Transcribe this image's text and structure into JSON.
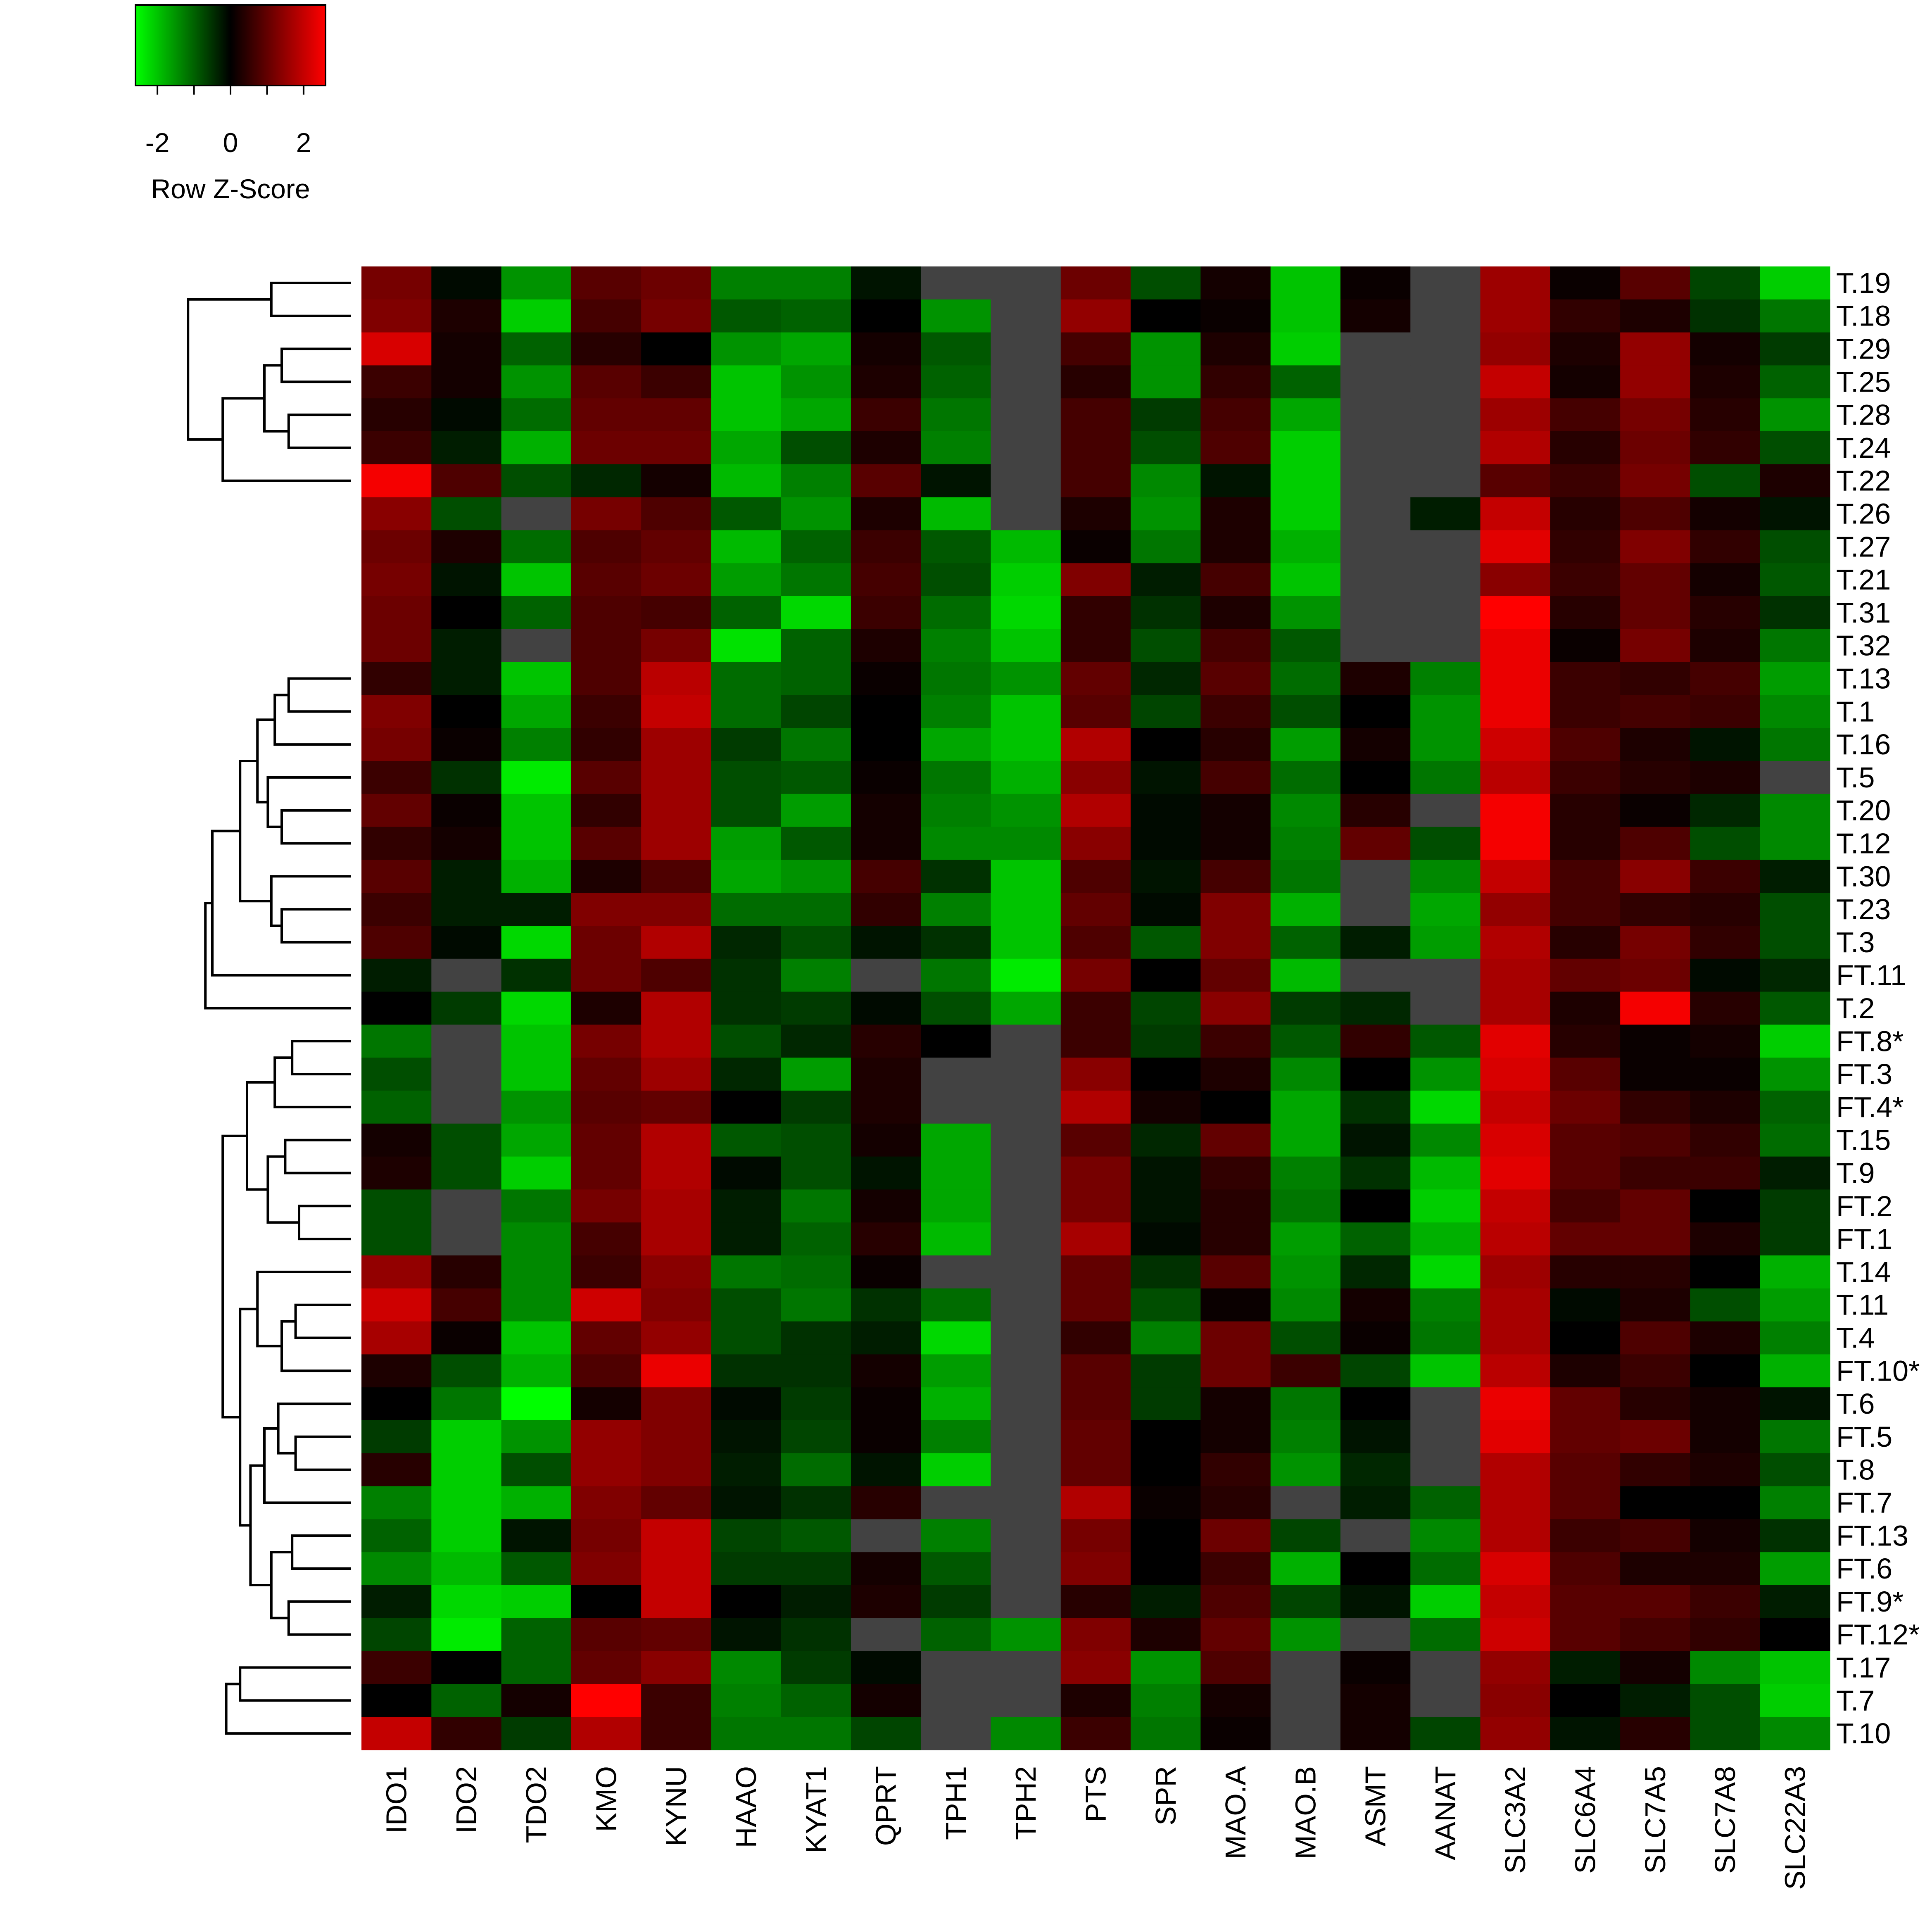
{
  "colors": {
    "low": "#00ff00",
    "mid": "#000000",
    "high": "#ff0000",
    "na": "#424242"
  },
  "legend": {
    "title": "Row Z-Score",
    "ticks": [
      "-2",
      "0",
      "2"
    ],
    "tick_values": [
      -2,
      0,
      2
    ],
    "range": [
      -2.6,
      2.6
    ]
  },
  "chart_data": {
    "type": "heatmap",
    "title": "",
    "xlabel": "",
    "ylabel": "",
    "value_range": [
      -2.6,
      2.6
    ],
    "dendrogram": "rows",
    "columns": [
      "IDO1",
      "IDO2",
      "TDO2",
      "KMO",
      "KYNU",
      "HAAO",
      "KYAT1",
      "QPRT",
      "TPH1",
      "TPH2",
      "PTS",
      "SPR",
      "MAO.A",
      "MAO.B",
      "ASMT",
      "AANAT",
      "SLC3A2",
      "SLC6A4",
      "SLC7A5",
      "SLC7A8",
      "SLC22A3"
    ],
    "rows": [
      "T.19",
      "T.18",
      "T.29",
      "T.25",
      "T.28",
      "T.24",
      "T.22",
      "T.26",
      "T.27",
      "T.21",
      "T.31",
      "T.32",
      "T.13",
      "T.1",
      "T.16",
      "T.5",
      "T.20",
      "T.12",
      "T.30",
      "T.23",
      "T.3",
      "FT.11",
      "T.2",
      "FT.8*",
      "FT.3",
      "FT.4*",
      "T.15",
      "T.9",
      "FT.2",
      "FT.1",
      "T.14",
      "T.11",
      "T.4",
      "FT.10*",
      "T.6",
      "FT.5",
      "T.8",
      "FT.7",
      "FT.13",
      "FT.6",
      "FT.9*",
      "FT.12*",
      "T.17",
      "T.7",
      "T.10"
    ],
    "values": [
      [
        1.2,
        -0.1,
        -1.5,
        0.9,
        1.1,
        -1.3,
        -1.3,
        -0.2,
        null,
        null,
        1.1,
        -0.8,
        0.2,
        -2.0,
        0.1,
        null,
        1.6,
        0.1,
        0.9,
        -0.7,
        -2.1
      ],
      [
        1.3,
        0.3,
        -2.1,
        0.7,
        1.2,
        -0.9,
        -1.0,
        0.0,
        -1.5,
        null,
        1.5,
        0.0,
        0.1,
        -2.0,
        0.2,
        null,
        1.6,
        0.5,
        0.3,
        -0.5,
        -1.2
      ],
      [
        2.2,
        0.2,
        -1.0,
        0.4,
        0.0,
        -1.5,
        -1.7,
        0.2,
        -0.9,
        null,
        0.7,
        -1.5,
        0.3,
        -2.1,
        null,
        null,
        1.5,
        0.3,
        1.5,
        0.2,
        -0.6
      ],
      [
        0.6,
        0.2,
        -1.5,
        0.9,
        0.6,
        -2.0,
        -1.5,
        0.3,
        -1.0,
        null,
        0.4,
        -1.5,
        0.5,
        -1.0,
        null,
        null,
        2.0,
        0.2,
        1.5,
        0.3,
        -1.0
      ],
      [
        0.4,
        -0.1,
        -1.1,
        1.0,
        1.0,
        -2.0,
        -1.7,
        0.6,
        -1.2,
        null,
        0.7,
        -0.6,
        0.7,
        -1.7,
        null,
        null,
        1.6,
        0.7,
        1.2,
        0.4,
        -1.5
      ],
      [
        0.6,
        -0.3,
        -1.8,
        1.1,
        1.1,
        -1.7,
        -0.8,
        0.3,
        -1.3,
        null,
        0.7,
        -0.8,
        0.8,
        -2.1,
        null,
        null,
        1.8,
        0.4,
        1.1,
        0.5,
        -0.8
      ],
      [
        2.5,
        0.8,
        -0.8,
        -0.4,
        0.2,
        -1.9,
        -1.3,
        0.9,
        -0.2,
        null,
        0.7,
        -1.4,
        -0.2,
        -2.1,
        null,
        null,
        0.9,
        0.6,
        1.2,
        -0.8,
        0.3
      ],
      [
        1.4,
        -0.8,
        null,
        1.2,
        0.8,
        -0.9,
        -1.5,
        0.3,
        -1.9,
        null,
        0.3,
        -1.5,
        0.3,
        -2.1,
        null,
        -0.3,
        2.0,
        0.4,
        0.8,
        0.2,
        -0.2
      ],
      [
        1.1,
        0.3,
        -1.1,
        0.8,
        1.0,
        -1.9,
        -1.0,
        0.6,
        -0.9,
        -1.9,
        0.1,
        -1.2,
        0.3,
        -1.8,
        null,
        null,
        2.3,
        0.5,
        1.3,
        0.5,
        -0.8
      ],
      [
        1.2,
        -0.2,
        -2.0,
        0.9,
        1.1,
        -1.6,
        -1.2,
        0.7,
        -0.8,
        -2.1,
        1.3,
        -0.3,
        0.7,
        -2.0,
        null,
        null,
        1.4,
        0.6,
        1.0,
        0.2,
        -0.9
      ],
      [
        1.1,
        0.0,
        -1.0,
        0.8,
        0.7,
        -1.0,
        -2.2,
        0.6,
        -1.1,
        -2.2,
        0.5,
        -0.5,
        0.3,
        -1.5,
        null,
        null,
        2.6,
        0.4,
        1.0,
        0.4,
        -0.5
      ],
      [
        1.1,
        -0.3,
        null,
        0.8,
        1.2,
        -2.3,
        -1.0,
        0.3,
        -1.3,
        -2.0,
        0.5,
        -0.8,
        0.7,
        -0.9,
        null,
        null,
        2.4,
        0.1,
        1.2,
        0.3,
        -1.2
      ],
      [
        0.5,
        -0.3,
        -2.0,
        0.8,
        1.9,
        -1.1,
        -1.0,
        0.1,
        -1.2,
        -1.5,
        1.0,
        -0.4,
        0.9,
        -1.1,
        0.3,
        -1.3,
        2.4,
        0.6,
        0.5,
        0.7,
        -1.6
      ],
      [
        1.3,
        0.0,
        -1.7,
        0.6,
        2.0,
        -1.1,
        -0.7,
        0.0,
        -1.3,
        -2.0,
        0.9,
        -0.7,
        0.6,
        -0.8,
        0.0,
        -1.5,
        2.4,
        0.6,
        0.7,
        0.6,
        -1.4
      ],
      [
        1.2,
        0.1,
        -1.3,
        0.5,
        1.6,
        -0.6,
        -1.2,
        0.0,
        -1.7,
        -2.0,
        1.8,
        0.0,
        0.4,
        -1.6,
        0.2,
        -1.5,
        2.1,
        0.8,
        0.3,
        -0.2,
        -1.2
      ],
      [
        0.6,
        -0.5,
        -2.4,
        0.9,
        1.6,
        -0.8,
        -0.9,
        0.1,
        -1.2,
        -1.8,
        1.4,
        -0.2,
        0.7,
        -1.1,
        0.0,
        -1.2,
        1.9,
        0.6,
        0.4,
        0.3,
        null
      ],
      [
        1.0,
        0.1,
        -2.0,
        0.5,
        1.6,
        -0.8,
        -1.6,
        0.2,
        -1.3,
        -1.5,
        1.8,
        -0.1,
        0.2,
        -1.4,
        0.4,
        null,
        2.5,
        0.4,
        0.1,
        -0.4,
        -1.4
      ],
      [
        0.5,
        0.2,
        -2.0,
        0.9,
        1.6,
        -1.6,
        -0.9,
        0.2,
        -1.4,
        -1.4,
        1.4,
        -0.1,
        0.2,
        -1.3,
        1.0,
        -0.8,
        2.5,
        0.4,
        0.8,
        -0.8,
        -1.4
      ],
      [
        0.9,
        -0.3,
        -1.8,
        0.3,
        0.8,
        -1.7,
        -1.5,
        0.7,
        -0.5,
        -2.0,
        0.8,
        -0.2,
        0.7,
        -1.2,
        null,
        -1.4,
        2.0,
        0.7,
        1.4,
        0.6,
        -0.3
      ],
      [
        0.6,
        -0.3,
        -0.3,
        1.3,
        1.3,
        -1.1,
        -1.1,
        0.5,
        -1.3,
        -2.0,
        1.0,
        -0.1,
        1.3,
        -1.8,
        null,
        -1.7,
        1.5,
        0.7,
        0.5,
        0.4,
        -0.8
      ],
      [
        0.8,
        -0.1,
        -2.2,
        1.1,
        1.8,
        -0.4,
        -0.8,
        -0.2,
        -0.5,
        -2.0,
        0.8,
        -0.9,
        1.3,
        -1.0,
        -0.3,
        -1.6,
        1.8,
        0.4,
        1.2,
        0.5,
        -0.8
      ],
      [
        -0.3,
        null,
        -0.5,
        1.1,
        0.8,
        -0.5,
        -1.3,
        null,
        -1.2,
        -2.4,
        1.2,
        0.0,
        1.0,
        -1.9,
        null,
        null,
        1.7,
        1.0,
        1.1,
        -0.1,
        -0.4
      ],
      [
        0.0,
        -0.6,
        -2.2,
        0.3,
        1.8,
        -0.5,
        -0.6,
        -0.1,
        -0.8,
        -1.7,
        0.6,
        -0.7,
        1.4,
        -0.6,
        -0.4,
        null,
        1.7,
        0.3,
        2.5,
        0.4,
        -0.9
      ],
      [
        -1.2,
        null,
        -2.0,
        1.2,
        1.8,
        -0.8,
        -0.4,
        0.4,
        0.0,
        null,
        0.6,
        -0.6,
        0.6,
        -0.9,
        0.5,
        -0.9,
        2.3,
        0.4,
        0.1,
        0.2,
        -2.1
      ],
      [
        -0.8,
        null,
        -2.0,
        1.0,
        1.6,
        -0.4,
        -1.6,
        0.3,
        null,
        null,
        1.4,
        0.0,
        0.3,
        -1.4,
        0.0,
        -1.5,
        2.2,
        0.9,
        0.1,
        0.1,
        -1.5
      ],
      [
        -1.0,
        null,
        -1.5,
        0.9,
        1.0,
        0.0,
        -0.6,
        0.3,
        null,
        null,
        1.8,
        0.2,
        0.0,
        -1.7,
        -0.5,
        -2.2,
        2.0,
        1.1,
        0.5,
        0.3,
        -1.0
      ],
      [
        0.2,
        -0.8,
        -1.7,
        1.0,
        1.8,
        -0.9,
        -0.8,
        0.2,
        -1.7,
        null,
        0.9,
        -0.4,
        1.0,
        -1.7,
        -0.2,
        -1.4,
        2.2,
        0.9,
        0.8,
        0.5,
        -1.1
      ],
      [
        0.3,
        -0.8,
        -2.1,
        1.0,
        1.8,
        -0.1,
        -0.8,
        -0.2,
        -1.7,
        null,
        1.2,
        -0.2,
        0.5,
        -1.3,
        -0.5,
        -1.9,
        2.3,
        0.9,
        0.6,
        0.6,
        -0.3
      ],
      [
        -0.8,
        null,
        -1.2,
        1.2,
        1.7,
        -0.3,
        -1.2,
        0.2,
        -1.7,
        null,
        1.2,
        -0.2,
        0.4,
        -1.2,
        0.0,
        -2.1,
        2.0,
        0.7,
        1.0,
        0.0,
        -0.6
      ],
      [
        -0.8,
        null,
        -1.4,
        0.7,
        1.7,
        -0.3,
        -1.0,
        0.4,
        -1.9,
        null,
        1.7,
        -0.1,
        0.4,
        -1.6,
        -1.0,
        -1.8,
        1.9,
        1.0,
        1.0,
        0.3,
        -0.6
      ],
      [
        1.5,
        0.4,
        -1.4,
        0.6,
        1.4,
        -1.2,
        -1.1,
        0.1,
        null,
        null,
        1.0,
        -0.5,
        0.9,
        -1.5,
        -0.4,
        -2.2,
        1.6,
        0.4,
        0.4,
        0.0,
        -1.8
      ],
      [
        2.1,
        0.7,
        -1.4,
        2.1,
        1.3,
        -0.8,
        -1.2,
        -0.5,
        -1.1,
        null,
        1.0,
        -0.8,
        0.1,
        -1.4,
        0.2,
        -1.3,
        1.7,
        -0.1,
        0.3,
        -0.8,
        -1.6
      ],
      [
        1.7,
        0.1,
        -2.0,
        1.0,
        1.5,
        -0.8,
        -0.5,
        -0.3,
        -2.2,
        null,
        0.5,
        -1.3,
        1.1,
        -0.8,
        0.1,
        -1.2,
        1.7,
        0.0,
        0.8,
        0.3,
        -1.3
      ],
      [
        0.3,
        -0.8,
        -1.8,
        0.8,
        2.4,
        -0.5,
        -0.5,
        0.2,
        -1.6,
        null,
        0.9,
        -0.6,
        1.1,
        0.6,
        -0.7,
        -2.0,
        1.9,
        0.3,
        0.6,
        0.0,
        -1.8
      ],
      [
        0.0,
        -1.2,
        -2.6,
        0.2,
        1.3,
        -0.1,
        -0.6,
        0.1,
        -1.8,
        null,
        0.9,
        -0.6,
        0.2,
        -1.2,
        0.0,
        null,
        2.4,
        1.0,
        0.4,
        0.2,
        -0.2
      ],
      [
        -0.6,
        -2.1,
        -1.5,
        1.5,
        1.3,
        -0.2,
        -0.7,
        0.1,
        -1.3,
        null,
        1.0,
        0.0,
        0.2,
        -1.3,
        -0.2,
        null,
        2.3,
        1.0,
        1.1,
        0.2,
        -1.2
      ],
      [
        0.4,
        -2.1,
        -0.8,
        1.5,
        1.3,
        -0.3,
        -1.1,
        -0.2,
        -2.1,
        null,
        1.0,
        0.0,
        0.5,
        -1.5,
        -0.4,
        null,
        1.8,
        0.9,
        0.5,
        0.3,
        -0.8
      ],
      [
        -1.3,
        -2.1,
        -1.8,
        1.3,
        1.0,
        -0.2,
        -0.5,
        0.4,
        null,
        null,
        1.8,
        0.1,
        0.4,
        null,
        -0.3,
        -1.0,
        1.8,
        0.9,
        0.0,
        0.0,
        -1.3
      ],
      [
        -1.0,
        -2.1,
        -0.2,
        1.2,
        2.0,
        -0.7,
        -0.9,
        null,
        -1.3,
        null,
        1.2,
        0.0,
        1.1,
        -0.7,
        null,
        -1.4,
        1.8,
        0.6,
        0.7,
        0.2,
        -0.5
      ],
      [
        -1.4,
        -1.9,
        -0.9,
        1.3,
        2.0,
        -0.6,
        -0.6,
        0.2,
        -0.9,
        null,
        1.3,
        0.0,
        0.6,
        -1.8,
        0.0,
        -1.1,
        2.2,
        0.8,
        0.3,
        0.3,
        -1.6
      ],
      [
        -0.3,
        -2.2,
        -2.1,
        0.0,
        2.0,
        0.0,
        -0.3,
        0.3,
        -0.6,
        null,
        0.4,
        -0.3,
        0.8,
        -0.7,
        -0.2,
        -2.1,
        2.0,
        0.9,
        0.9,
        0.6,
        -0.3
      ],
      [
        -0.7,
        -2.4,
        -1.0,
        0.9,
        1.0,
        -0.2,
        -0.5,
        null,
        -1.0,
        -1.5,
        1.3,
        0.3,
        1.0,
        -1.5,
        null,
        -1.1,
        2.1,
        0.9,
        0.7,
        0.5,
        0.0
      ],
      [
        0.6,
        0.0,
        -1.0,
        1.0,
        1.4,
        -1.4,
        -0.6,
        -0.1,
        null,
        null,
        1.4,
        -1.5,
        0.8,
        null,
        0.1,
        null,
        1.5,
        -0.3,
        0.2,
        -1.4,
        -2.0
      ],
      [
        0.0,
        -1.0,
        0.2,
        2.6,
        0.6,
        -1.3,
        -1.0,
        0.2,
        null,
        null,
        0.3,
        -1.3,
        0.2,
        null,
        0.2,
        null,
        1.4,
        0.0,
        -0.3,
        -0.8,
        -2.1
      ],
      [
        2.0,
        0.5,
        -0.6,
        1.8,
        0.6,
        -1.2,
        -1.2,
        -0.7,
        null,
        -1.4,
        0.6,
        -1.2,
        0.1,
        null,
        0.2,
        -0.7,
        1.5,
        -0.2,
        0.4,
        -0.8,
        -1.4
      ]
    ],
    "row_dendrogram": {
      "max_height": 1.0,
      "merges": [
        {
          "a": "T.19",
          "b": "T.18",
          "h": 0.23
        },
        {
          "a": "T.29",
          "b": "T.25",
          "h": 0.2
        },
        {
          "a": "T.28",
          "b": "T.24",
          "h": 0.18
        },
        {
          "a": "T.29+T.25",
          "b": "T.28+T.24",
          "h": 0.25
        },
        {
          "a": "T.29..T.24",
          "b": "T.22",
          "h": 0.37
        },
        {
          "a": "T.19+T.18",
          "b": "T.29..T.22",
          "h": 0.47
        },
        {
          "a": "T.27..T.21",
          "b": "T.31+T.32",
          "h": 0.27
        },
        {
          "a": "T.26",
          "b": "T.27..T.32",
          "h": 0.31
        },
        {
          "a": "T.19..T.22",
          "b": "T.26..T.32",
          "h": 0.55
        },
        {
          "a": "T.13",
          "b": "T.1",
          "h": 0.18
        },
        {
          "a": "T.13+T.1",
          "b": "T.16",
          "h": 0.22
        },
        {
          "a": "T.20",
          "b": "T.12",
          "h": 0.2
        },
        {
          "a": "T.5",
          "b": "T.20+T.12",
          "h": 0.24
        },
        {
          "a": "T.13..T.16",
          "b": "T.5..T.12",
          "h": 0.27
        },
        {
          "a": "T.23",
          "b": "T.3",
          "h": 0.2
        },
        {
          "a": "T.30",
          "b": "T.23+T.3",
          "h": 0.23
        },
        {
          "a": "T.13..T.12",
          "b": "T.30..T.3",
          "h": 0.32
        },
        {
          "a": "T.13..T.3",
          "b": "FT.11",
          "h": 0.4
        },
        {
          "a": "T.13..FT.11",
          "b": "T.2",
          "h": 0.42
        },
        {
          "a": "T.19..T.32",
          "b": "T.13..T.2",
          "h": 0.62
        },
        {
          "a": "FT.8*",
          "b": "FT.3",
          "h": 0.17
        },
        {
          "a": "FT.8*+FT.3",
          "b": "FT.4*",
          "h": 0.22
        },
        {
          "a": "T.15",
          "b": "T.9",
          "h": 0.19
        },
        {
          "a": "FT.2",
          "b": "FT.1",
          "h": 0.15
        },
        {
          "a": "T.15+T.9",
          "b": "FT.2+FT.1",
          "h": 0.24
        },
        {
          "a": "FT.8*..FT.4*",
          "b": "T.15..FT.1",
          "h": 0.3
        },
        {
          "a": "T.11",
          "b": "T.4",
          "h": 0.16
        },
        {
          "a": "T.11+T.4",
          "b": "FT.10*",
          "h": 0.2
        },
        {
          "a": "T.14",
          "b": "T.11..FT.10*",
          "h": 0.27
        },
        {
          "a": "FT.5",
          "b": "T.8",
          "h": 0.16
        },
        {
          "a": "T.6",
          "b": "FT.5+T.8",
          "h": 0.21
        },
        {
          "a": "T.6..T.8",
          "b": "FT.7",
          "h": 0.25
        },
        {
          "a": "FT.13",
          "b": "FT.6",
          "h": 0.17
        },
        {
          "a": "FT.9*",
          "b": "FT.12*",
          "h": 0.18
        },
        {
          "a": "FT.13+FT.6",
          "b": "FT.9*+FT.12*",
          "h": 0.23
        },
        {
          "a": "T.6..FT.7",
          "b": "FT.13..FT.12*",
          "h": 0.29
        },
        {
          "a": "T.14..FT.10*",
          "b": "T.6..FT.12*",
          "h": 0.32
        },
        {
          "a": "FT.8*..FT.1",
          "b": "T.14..FT.12*",
          "h": 0.37
        },
        {
          "a": "T.19..T.2",
          "b": "FT.8*..FT.12*",
          "h": 0.84
        },
        {
          "a": "T.17",
          "b": "T.7",
          "h": 0.32
        },
        {
          "a": "T.17+T.7",
          "b": "T.10",
          "h": 0.36
        },
        {
          "a": "T.19..FT.12*",
          "b": "T.17..T.10",
          "h": 1.0
        }
      ]
    }
  }
}
